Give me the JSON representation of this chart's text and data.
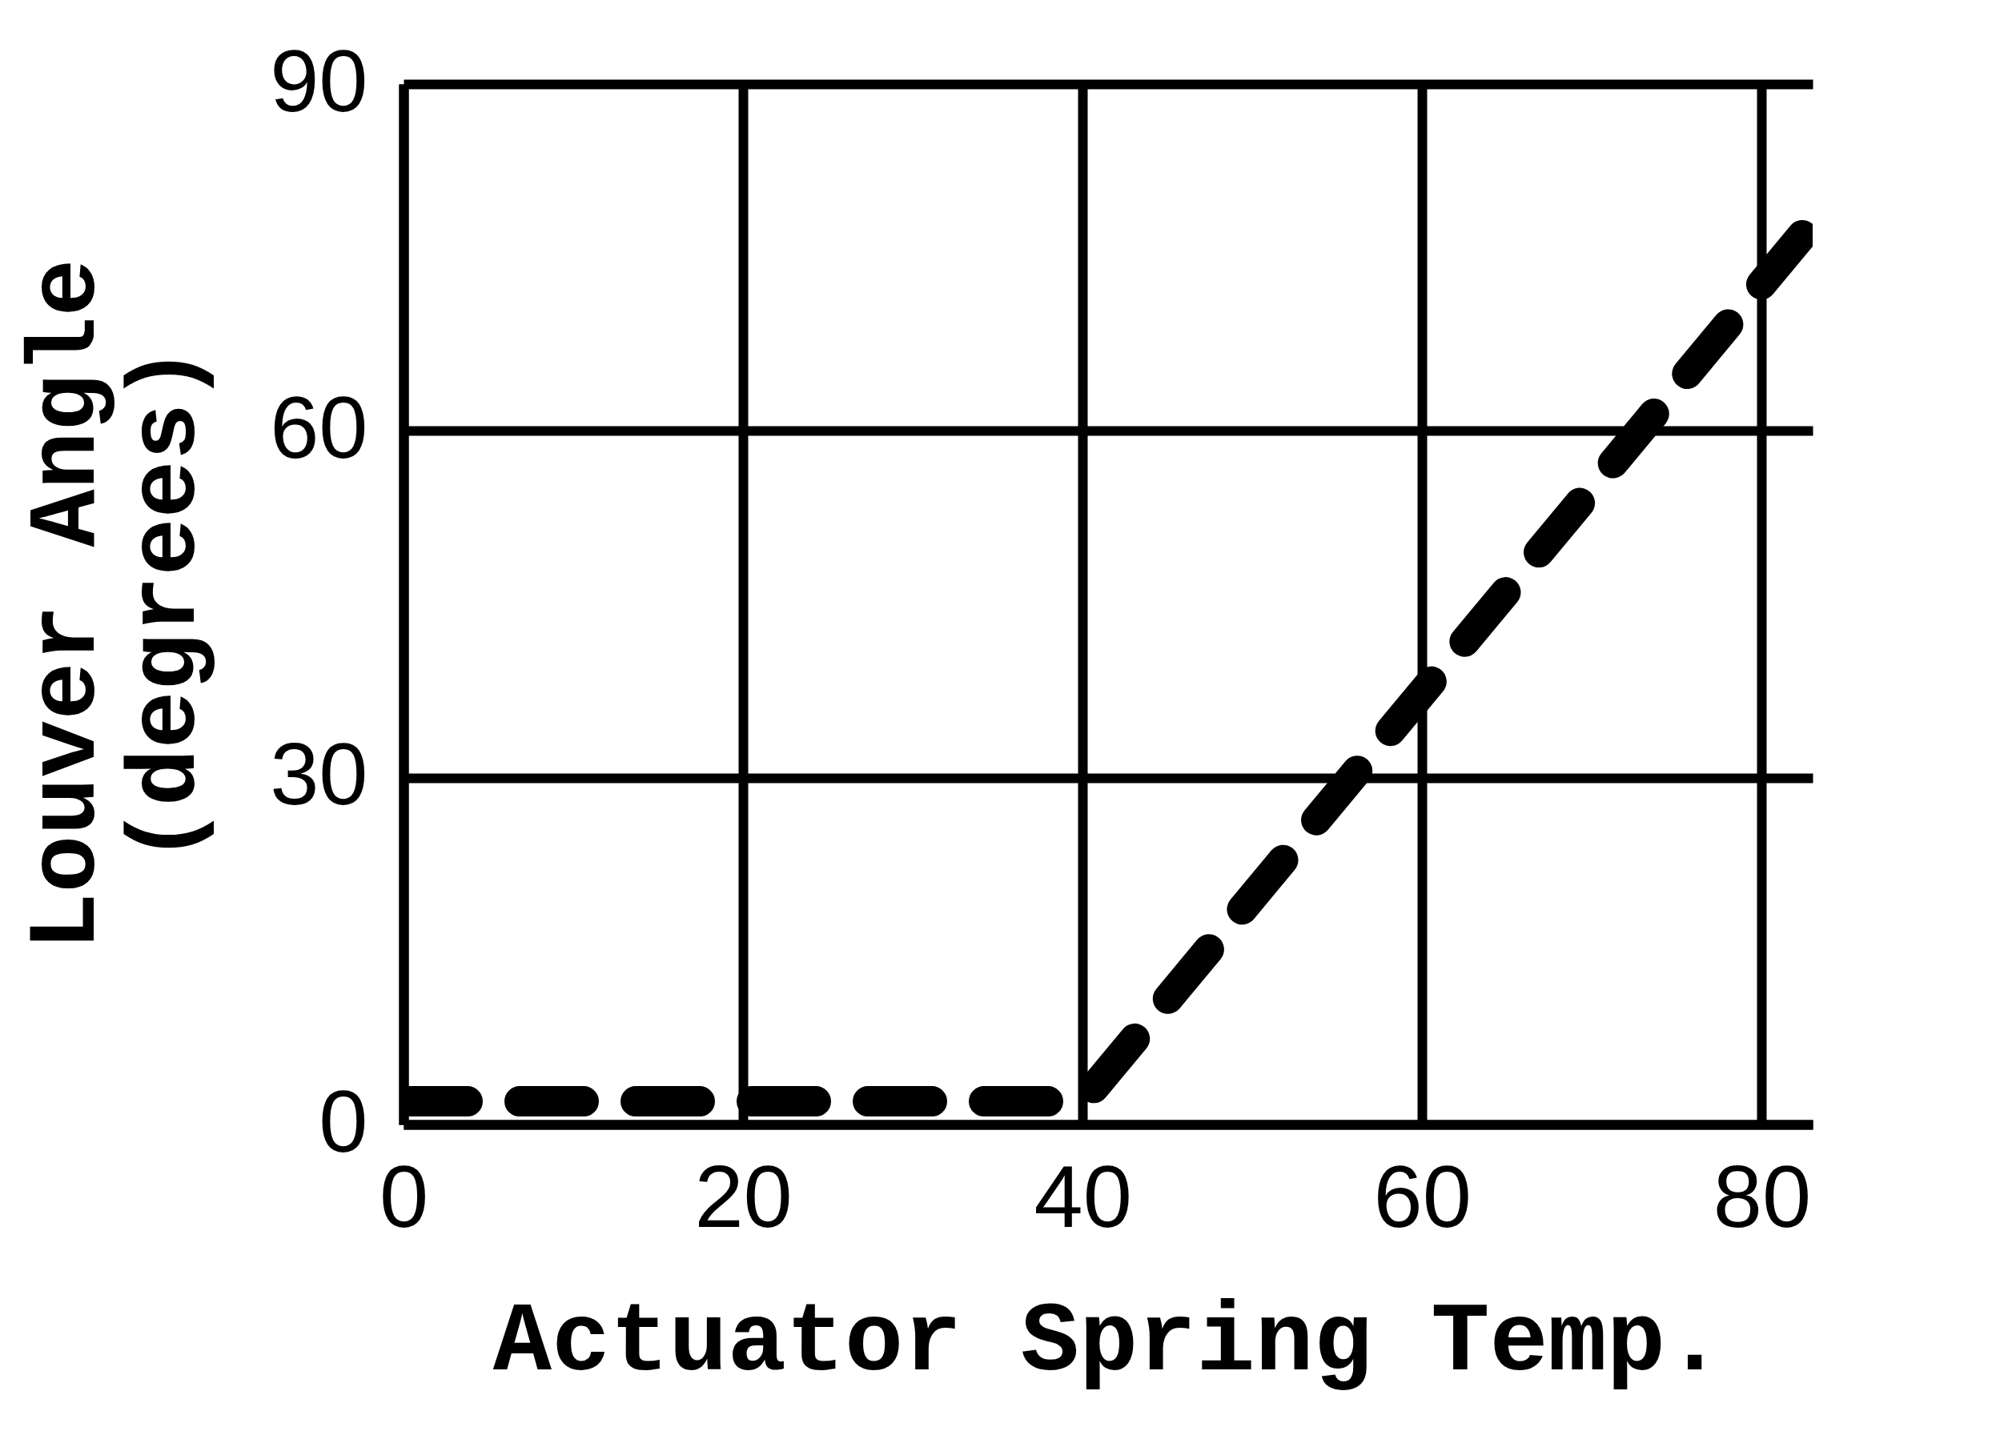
{
  "chart_data": {
    "type": "line",
    "xlabel": "Actuator Spring Temp.",
    "ylabel": "Louver Angle\n(degrees)",
    "x": [
      0,
      40,
      83
    ],
    "series": [
      {
        "color": "#000000",
        "values": [
          2,
          2,
          78
        ]
      }
    ],
    "xlim": [
      0,
      83
    ],
    "ylim": [
      0,
      90
    ],
    "xticks": [
      0,
      20,
      40,
      60,
      80
    ],
    "yticks": [
      0,
      30,
      60,
      90
    ],
    "grid": true,
    "line_style": "dashed"
  }
}
